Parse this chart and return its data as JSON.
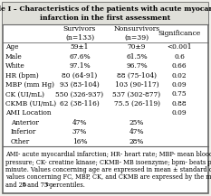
{
  "title": "Table I – Characteristics of the patients with acute myocardial\ninfarction in the first assessment",
  "col_headers": [
    "",
    "Survivors\n(n=133)",
    "Nonsurvivors\n(n=39)",
    "Significance"
  ],
  "rows": [
    [
      "Age",
      "59±1",
      "70±9",
      "<0.001"
    ],
    [
      "Male",
      "67.6%",
      "61.5%",
      "0.6"
    ],
    [
      "White",
      "97.1%",
      "96.7%",
      "0.66"
    ],
    [
      "HR (bpm)",
      "80 (64-91)",
      "88 (75-104)",
      "0.02"
    ],
    [
      "MBP (mm Hg)",
      "93 (83-104)",
      "103 (90-117)",
      "0.09"
    ],
    [
      "CK (UI/mL)",
      "550 (326-937)",
      "537 (302-877)",
      "0.75"
    ],
    [
      "CKMB (UI/mL)",
      "62 (38-116)",
      "75.5 (26-119)",
      "0.88"
    ],
    [
      "AMI Location",
      "",
      "",
      "0.09"
    ],
    [
      "Anterior",
      "47%",
      "25%",
      ""
    ],
    [
      "Inferior",
      "37%",
      "47%",
      ""
    ],
    [
      "Other",
      "16%",
      "28%",
      ""
    ]
  ],
  "footnote_lines": [
    "AMI- acute myocardial infarction; HR- heart rate; MBP- mean blood",
    "pressure; CK- creatine kinase; CKMB- MB isoenzyme; bpm- beats per",
    "minute. Values concerning age are expressed in mean ± standard deviation;",
    "values concerning FC, MBP, CK, and CKMB are expressed by the median",
    "and 25",
    "th",
    " and 75",
    "th",
    "percentiles."
  ],
  "bg_color": "#f0f0eb",
  "table_bg": "#ffffff",
  "border_color": "#666666",
  "title_bg": "#e0e0da",
  "title_fontsize": 5.5,
  "header_fontsize": 5.5,
  "row_fontsize": 5.3,
  "footnote_fontsize": 4.8
}
